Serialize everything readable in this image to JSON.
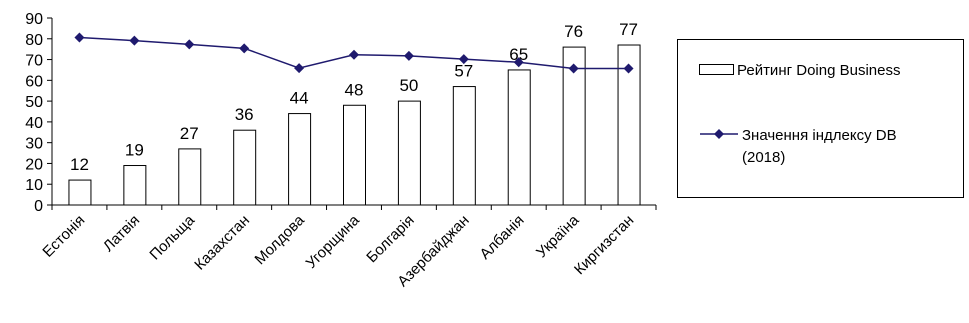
{
  "chart_data": {
    "type": "bar",
    "categories": [
      "Естонія",
      "Латвія",
      "Польща",
      "Казахстан",
      "Молдова",
      "Угорщина",
      "Болгарія",
      "Азербайджан",
      "Албанія",
      "Україна",
      "Киргизстан"
    ],
    "series": [
      {
        "name": "Рейтинг Doing Business",
        "type": "bar",
        "values": [
          12,
          19,
          27,
          36,
          44,
          48,
          50,
          57,
          65,
          76,
          77
        ],
        "data_labels": [
          "12",
          "19",
          "27",
          "36",
          "44",
          "48",
          "50",
          "57",
          "65",
          "76",
          "77"
        ]
      },
      {
        "name_lines": [
          "Значення індлексу DB",
          "(2018)"
        ],
        "type": "line",
        "values": [
          80.6,
          79.1,
          77.3,
          75.4,
          65.9,
          72.3,
          71.8,
          70.2,
          68.7,
          65.7,
          65.7
        ]
      }
    ],
    "ylim": [
      0,
      90
    ],
    "yticks": [
      "0",
      "10",
      "20",
      "30",
      "40",
      "50",
      "60",
      "70",
      "80",
      "90"
    ],
    "grid": false,
    "legend_position": "right",
    "colors": {
      "bar_fill": "#ffffff",
      "bar_stroke": "#000000",
      "line": "#1f1a6e",
      "axis": "#000000"
    }
  }
}
